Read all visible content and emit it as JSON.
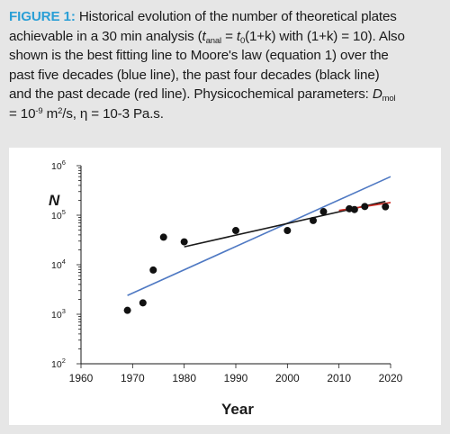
{
  "caption": {
    "figure_label": "FIGURE 1:",
    "line1": "Historical evolution of the number of theoretical plates",
    "line2_a": "achievable in a 30 min analysis (",
    "t_anal_t": "t",
    "t_anal_sub": "anal",
    "line2_b": " = ",
    "t0_t": "t",
    "t0_sub": "0",
    "line2_c": "(1+k) with (1+",
    "k_var": "k",
    "line2_d": ") = 10). Also",
    "line3": "shown is the best fitting line to Moore's law (equation 1) over the",
    "line4": "past five decades (blue line), the past four decades (black line)",
    "line5_a": "and the past decade (red line). Physicochemical parameters: ",
    "dmol_d": "D",
    "dmol_sub": "mol",
    "line6_a": "= 10",
    "line6_exp": "-9",
    "line6_b": " m",
    "line6_exp2": "2",
    "line6_c": "/s, η = 10-3 Pa.s."
  },
  "chart_data": {
    "type": "scatter",
    "ylabel": "N",
    "xlabel": "Year",
    "xlim": [
      1960,
      2020
    ],
    "ylim": [
      100,
      1000000
    ],
    "yscale": "log",
    "x_ticks": [
      "1960",
      "1970",
      "1980",
      "1990",
      "2000",
      "2010",
      "2020"
    ],
    "y_ticks": [
      {
        "base": "10",
        "exp": "6"
      },
      {
        "base": "10",
        "exp": "5"
      },
      {
        "base": "10",
        "exp": "4"
      },
      {
        "base": "10",
        "exp": "3"
      },
      {
        "base": "10",
        "exp": "2"
      }
    ],
    "points": [
      {
        "x": 1969,
        "y": 1200
      },
      {
        "x": 1972,
        "y": 1700
      },
      {
        "x": 1974,
        "y": 7800
      },
      {
        "x": 1976,
        "y": 36000
      },
      {
        "x": 1980,
        "y": 29000
      },
      {
        "x": 1990,
        "y": 49000
      },
      {
        "x": 2000,
        "y": 49000
      },
      {
        "x": 2005,
        "y": 78000
      },
      {
        "x": 2007,
        "y": 118000
      },
      {
        "x": 2012,
        "y": 135000
      },
      {
        "x": 2013,
        "y": 130000
      },
      {
        "x": 2015,
        "y": 150000
      },
      {
        "x": 2019,
        "y": 148000
      }
    ],
    "fit_lines": [
      {
        "color": "#4f79c3",
        "x": [
          1969,
          2020
        ],
        "y": [
          2400,
          600000
        ]
      },
      {
        "color": "#1a1a1a",
        "x": [
          1980,
          2019
        ],
        "y": [
          23000,
          190000
        ]
      },
      {
        "color": "#cc2a22",
        "x": [
          2010,
          2020
        ],
        "y": [
          125000,
          180000
        ]
      }
    ],
    "grid": false,
    "legend": "none"
  },
  "colors": {
    "figure_label": "#2a9fd6",
    "background": "#e6e6e6",
    "panel": "#ffffff"
  }
}
